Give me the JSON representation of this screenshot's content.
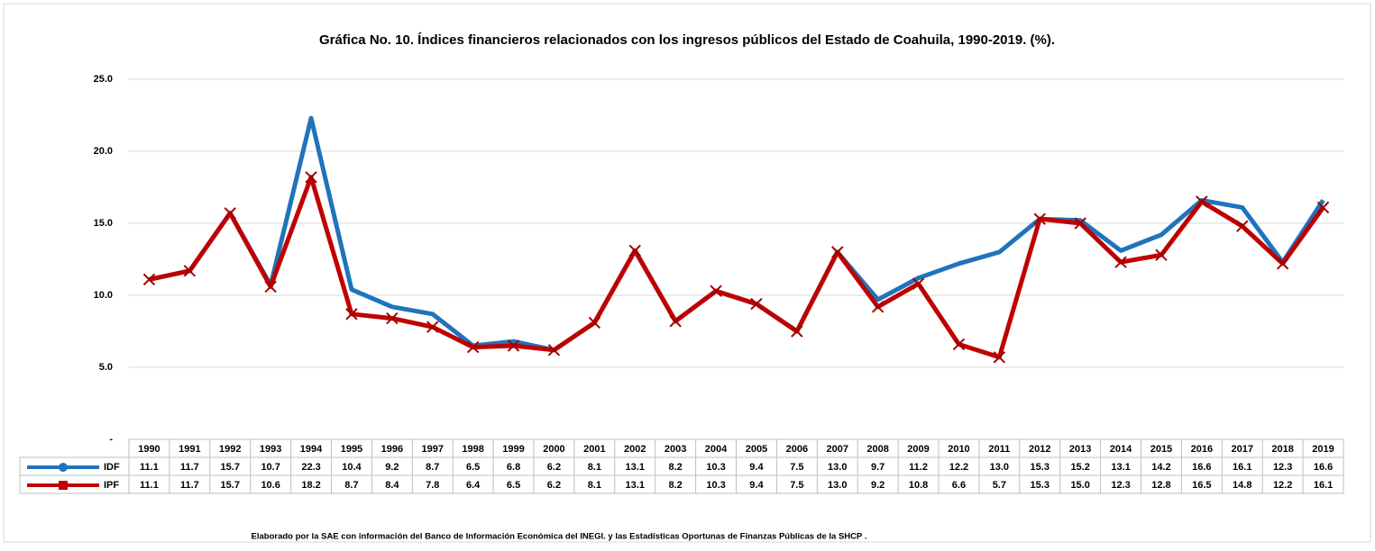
{
  "chart_data": {
    "type": "line",
    "title": "Gráfica No. 10. Índices financieros relacionados con los ingresos públicos del Estado de Coahuila, 1990-2019. (%).",
    "footnote": "Elaborado por la SAE con información del Banco de Información Económica del INEGI. y las Estadísticas Oportunas de Finanzas Públicas de la SHCP .",
    "categories": [
      "1990",
      "1991",
      "1992",
      "1993",
      "1994",
      "1995",
      "1996",
      "1997",
      "1998",
      "1999",
      "2000",
      "2001",
      "2002",
      "2003",
      "2004",
      "2005",
      "2006",
      "2007",
      "2008",
      "2009",
      "2010",
      "2011",
      "2012",
      "2013",
      "2014",
      "2015",
      "2016",
      "2017",
      "2018",
      "2019"
    ],
    "series": [
      {
        "name": "IDF",
        "color": "#1f74bb",
        "values": [
          11.1,
          11.7,
          15.7,
          10.7,
          22.3,
          10.4,
          9.2,
          8.7,
          6.5,
          6.8,
          6.2,
          8.1,
          13.1,
          8.2,
          10.3,
          9.4,
          7.5,
          13.0,
          9.7,
          11.2,
          12.2,
          13.0,
          15.3,
          15.2,
          13.1,
          14.2,
          16.6,
          16.1,
          12.3,
          16.6
        ],
        "value_labels": [
          "11.1",
          "11.7",
          "15.7",
          "10.7",
          "22.3",
          "10.4",
          "9.2",
          "8.7",
          "6.5",
          "6.8",
          "6.2",
          "8.1",
          "13.1",
          "8.2",
          "10.3",
          "9.4",
          "7.5",
          "13.0",
          "9.7",
          "11.2",
          "12.2",
          "13.0",
          "15.3",
          "15.2",
          "13.1",
          "14.2",
          "16.6",
          "16.1",
          "12.3",
          "16.6"
        ]
      },
      {
        "name": "IPF",
        "color": "#c00000",
        "values": [
          11.1,
          11.7,
          15.7,
          10.6,
          18.2,
          8.7,
          8.4,
          7.8,
          6.4,
          6.5,
          6.2,
          8.1,
          13.1,
          8.2,
          10.3,
          9.4,
          7.5,
          13.0,
          9.2,
          10.8,
          6.6,
          5.7,
          15.3,
          15.0,
          12.3,
          12.8,
          16.5,
          14.8,
          12.2,
          16.1
        ],
        "value_labels": [
          "11.1",
          "11.7",
          "15.7",
          "10.6",
          "18.2",
          "8.7",
          "8.4",
          "7.8",
          "6.4",
          "6.5",
          "6.2",
          "8.1",
          "13.1",
          "8.2",
          "10.3",
          "9.4",
          "7.5",
          "13.0",
          "9.2",
          "10.8",
          "6.6",
          "5.7",
          "15.3",
          "15.0",
          "12.3",
          "12.8",
          "16.5",
          "14.8",
          "12.2",
          "16.1"
        ]
      }
    ],
    "ylim": [
      0,
      25
    ],
    "yticks": [
      {
        "value": 0,
        "label": "-"
      },
      {
        "value": 5,
        "label": "5.0"
      },
      {
        "value": 10,
        "label": "10.0"
      },
      {
        "value": 15,
        "label": "15.0"
      },
      {
        "value": 20,
        "label": "20.0"
      },
      {
        "value": 25,
        "label": "25.0"
      }
    ],
    "grid": true
  }
}
